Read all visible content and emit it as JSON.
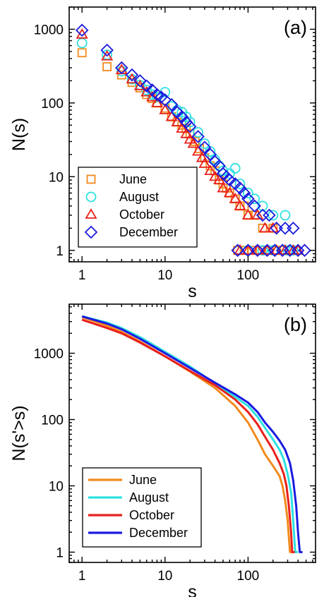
{
  "chart_data": [
    {
      "type": "scatter",
      "panel_label": "(a)",
      "xlabel": "s",
      "ylabel": "N(s)",
      "x_scale": "log",
      "y_scale": "log",
      "xlim": [
        0.7,
        650
      ],
      "ylim": [
        0.7,
        2000
      ],
      "x_ticks": [
        1,
        10,
        100
      ],
      "x_tick_labels": [
        "1",
        "10",
        "100"
      ],
      "y_ticks": [
        1,
        10,
        100,
        1000
      ],
      "y_tick_labels": [
        "1",
        "10",
        "100",
        "1000"
      ],
      "grid": false,
      "legend_position": "bottom-left",
      "series": [
        {
          "name": "June",
          "marker": "square",
          "color": "#f28a1c",
          "points": [
            [
              1,
              480
            ],
            [
              2,
              310
            ],
            [
              3,
              240
            ],
            [
              4,
              190
            ],
            [
              5,
              160
            ],
            [
              6,
              130
            ],
            [
              7,
              115
            ],
            [
              8,
              100
            ],
            [
              10,
              85
            ],
            [
              12,
              65
            ],
            [
              14,
              55
            ],
            [
              16,
              50
            ],
            [
              18,
              45
            ],
            [
              20,
              38
            ],
            [
              23,
              30
            ],
            [
              26,
              24
            ],
            [
              30,
              18
            ],
            [
              35,
              14
            ],
            [
              40,
              12
            ],
            [
              45,
              9
            ],
            [
              50,
              8
            ],
            [
              55,
              7
            ],
            [
              60,
              6
            ],
            [
              70,
              5
            ],
            [
              80,
              4
            ],
            [
              90,
              4
            ],
            [
              100,
              3
            ],
            [
              120,
              3
            ],
            [
              150,
              2
            ],
            [
              200,
              2
            ],
            [
              75,
              1
            ],
            [
              90,
              1
            ],
            [
              110,
              1
            ],
            [
              140,
              1
            ],
            [
              180,
              1
            ],
            [
              220,
              1
            ],
            [
              260,
              1
            ],
            [
              320,
              1
            ]
          ]
        },
        {
          "name": "August",
          "marker": "circle",
          "color": "#2ee0e0",
          "points": [
            [
              1,
              650
            ],
            [
              2,
              450
            ],
            [
              3,
              270
            ],
            [
              4,
              210
            ],
            [
              5,
              175
            ],
            [
              6,
              150
            ],
            [
              7,
              130
            ],
            [
              8,
              120
            ],
            [
              10,
              140
            ],
            [
              12,
              90
            ],
            [
              14,
              80
            ],
            [
              16,
              75
            ],
            [
              18,
              65
            ],
            [
              20,
              55
            ],
            [
              25,
              40
            ],
            [
              30,
              28
            ],
            [
              35,
              22
            ],
            [
              40,
              17
            ],
            [
              45,
              14
            ],
            [
              50,
              12
            ],
            [
              60,
              11
            ],
            [
              70,
              13
            ],
            [
              80,
              8
            ],
            [
              100,
              6
            ],
            [
              120,
              5
            ],
            [
              150,
              4
            ],
            [
              200,
              3
            ],
            [
              280,
              3
            ],
            [
              100,
              1
            ],
            [
              150,
              1
            ],
            [
              200,
              1
            ],
            [
              300,
              1
            ],
            [
              350,
              1
            ]
          ]
        },
        {
          "name": "October",
          "marker": "triangle",
          "color": "#e8201c",
          "points": [
            [
              1,
              850
            ],
            [
              2,
              430
            ],
            [
              3,
              280
            ],
            [
              4,
              210
            ],
            [
              5,
              170
            ],
            [
              6,
              140
            ],
            [
              7,
              120
            ],
            [
              8,
              100
            ],
            [
              10,
              80
            ],
            [
              12,
              65
            ],
            [
              14,
              55
            ],
            [
              16,
              45
            ],
            [
              18,
              38
            ],
            [
              20,
              32
            ],
            [
              22,
              28
            ],
            [
              25,
              22
            ],
            [
              28,
              18
            ],
            [
              30,
              15
            ],
            [
              35,
              12
            ],
            [
              40,
              10
            ],
            [
              45,
              9
            ],
            [
              50,
              7
            ],
            [
              60,
              6
            ],
            [
              70,
              5
            ],
            [
              80,
              4
            ],
            [
              100,
              3
            ],
            [
              130,
              3
            ],
            [
              160,
              2
            ],
            [
              200,
              2
            ],
            [
              80,
              1
            ],
            [
              100,
              1
            ],
            [
              130,
              1
            ],
            [
              170,
              1
            ],
            [
              220,
              1
            ],
            [
              280,
              1
            ],
            [
              350,
              1
            ],
            [
              400,
              1
            ]
          ]
        },
        {
          "name": "December",
          "marker": "diamond",
          "color": "#1a1ae0",
          "points": [
            [
              1,
              970
            ],
            [
              2,
              520
            ],
            [
              3,
              300
            ],
            [
              4,
              240
            ],
            [
              5,
              200
            ],
            [
              6,
              170
            ],
            [
              7,
              150
            ],
            [
              8,
              130
            ],
            [
              9,
              120
            ],
            [
              10,
              110
            ],
            [
              12,
              95
            ],
            [
              14,
              75
            ],
            [
              16,
              65
            ],
            [
              18,
              55
            ],
            [
              20,
              48
            ],
            [
              25,
              35
            ],
            [
              30,
              25
            ],
            [
              35,
              20
            ],
            [
              40,
              16
            ],
            [
              45,
              14
            ],
            [
              50,
              11
            ],
            [
              55,
              10
            ],
            [
              60,
              9
            ],
            [
              70,
              8
            ],
            [
              80,
              7
            ],
            [
              90,
              6
            ],
            [
              100,
              5
            ],
            [
              120,
              4
            ],
            [
              150,
              3
            ],
            [
              180,
              3
            ],
            [
              220,
              2
            ],
            [
              280,
              2
            ],
            [
              350,
              2
            ],
            [
              75,
              1
            ],
            [
              100,
              1
            ],
            [
              130,
              1
            ],
            [
              170,
              1
            ],
            [
              210,
              1
            ],
            [
              260,
              1
            ],
            [
              320,
              1
            ],
            [
              400,
              1
            ],
            [
              480,
              1
            ]
          ]
        }
      ]
    },
    {
      "type": "line",
      "panel_label": "(b)",
      "xlabel": "s",
      "ylabel": "N(s'>s)",
      "x_scale": "log",
      "y_scale": "log",
      "xlim": [
        0.7,
        650
      ],
      "ylim": [
        0.7,
        5500
      ],
      "x_ticks": [
        1,
        10,
        100
      ],
      "x_tick_labels": [
        "1",
        "10",
        "100"
      ],
      "y_ticks": [
        1,
        10,
        100,
        1000
      ],
      "y_tick_labels": [
        "1",
        "10",
        "100",
        "1000"
      ],
      "grid": false,
      "legend_position": "bottom-left",
      "series": [
        {
          "name": "June",
          "color": "#f28a1c",
          "points": [
            [
              1,
              3500
            ],
            [
              2,
              2600
            ],
            [
              3,
              2100
            ],
            [
              5,
              1500
            ],
            [
              10,
              900
            ],
            [
              20,
              530
            ],
            [
              40,
              300
            ],
            [
              70,
              160
            ],
            [
              100,
              90
            ],
            [
              130,
              50
            ],
            [
              160,
              30
            ],
            [
              200,
              20
            ],
            [
              240,
              14
            ],
            [
              260,
              10
            ],
            [
              280,
              6
            ],
            [
              300,
              3
            ],
            [
              320,
              1
            ]
          ]
        },
        {
          "name": "August",
          "color": "#2ee0e0",
          "points": [
            [
              1,
              3600
            ],
            [
              2,
              2900
            ],
            [
              3,
              2400
            ],
            [
              5,
              1750
            ],
            [
              10,
              1050
            ],
            [
              20,
              630
            ],
            [
              40,
              350
            ],
            [
              70,
              220
            ],
            [
              100,
              160
            ],
            [
              130,
              110
            ],
            [
              160,
              75
            ],
            [
              200,
              50
            ],
            [
              240,
              35
            ],
            [
              270,
              25
            ],
            [
              300,
              15
            ],
            [
              330,
              8
            ],
            [
              350,
              3
            ],
            [
              370,
              1
            ]
          ]
        },
        {
          "name": "October",
          "color": "#e8201c",
          "points": [
            [
              1,
              3200
            ],
            [
              2,
              2400
            ],
            [
              3,
              2000
            ],
            [
              5,
              1450
            ],
            [
              10,
              900
            ],
            [
              20,
              540
            ],
            [
              40,
              330
            ],
            [
              70,
              200
            ],
            [
              100,
              130
            ],
            [
              130,
              85
            ],
            [
              160,
              55
            ],
            [
              200,
              35
            ],
            [
              240,
              22
            ],
            [
              270,
              15
            ],
            [
              290,
              10
            ],
            [
              310,
              5
            ],
            [
              330,
              2
            ],
            [
              340,
              1
            ]
          ]
        },
        {
          "name": "December",
          "color": "#1a1ae0",
          "points": [
            [
              1,
              3600
            ],
            [
              2,
              2800
            ],
            [
              3,
              2300
            ],
            [
              5,
              1650
            ],
            [
              10,
              1000
            ],
            [
              20,
              600
            ],
            [
              40,
              360
            ],
            [
              70,
              240
            ],
            [
              100,
              180
            ],
            [
              130,
              130
            ],
            [
              160,
              90
            ],
            [
              200,
              65
            ],
            [
              240,
              48
            ],
            [
              280,
              35
            ],
            [
              320,
              22
            ],
            [
              350,
              12
            ],
            [
              380,
              5
            ],
            [
              400,
              2
            ],
            [
              420,
              1
            ]
          ]
        }
      ]
    }
  ]
}
